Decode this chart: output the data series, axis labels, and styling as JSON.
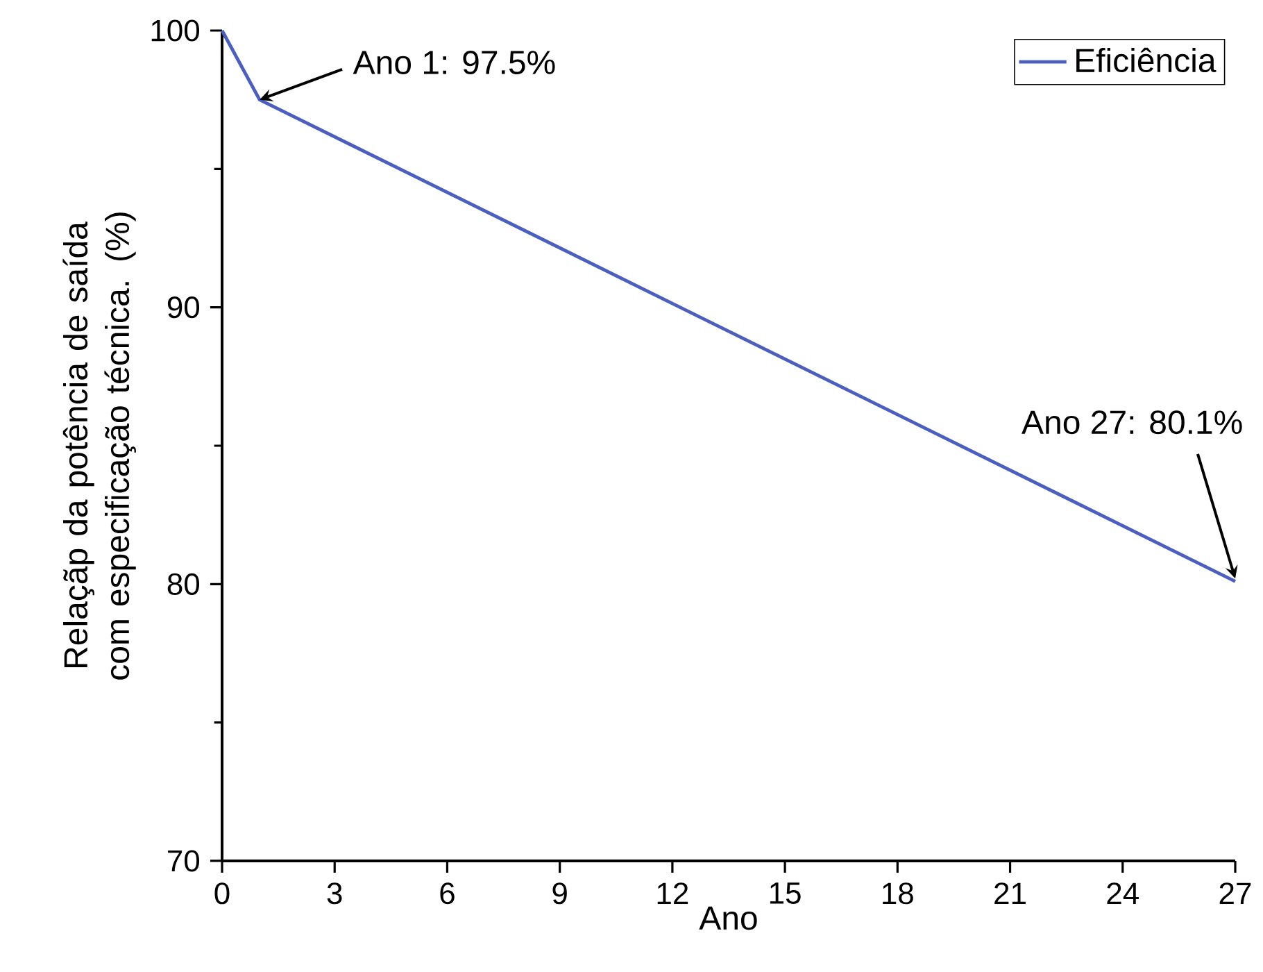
{
  "chart_data": {
    "type": "line",
    "xlabel": "Ano",
    "ylabel": "Relaçãp da potência de saída com especificação técnica. (%)",
    "x": [
      0,
      1,
      27
    ],
    "series": [
      {
        "name": "Eficiência",
        "color": "#4a5fc1",
        "values": [
          100,
          97.5,
          80.1
        ]
      }
    ],
    "xlim": [
      0,
      27
    ],
    "xticks": [
      0,
      3,
      6,
      9,
      12,
      15,
      18,
      21,
      24,
      27
    ],
    "ylim": [
      70,
      100
    ],
    "yticks": [
      70,
      80,
      90,
      100
    ],
    "legend": "top right",
    "marker": "none",
    "line_style": "solid",
    "grid": false,
    "annotations": [
      {
        "text": "Ano 1: 97.5%",
        "x": 1,
        "y": 97.5
      },
      {
        "text": "Ano 27: 80.1%",
        "x": 27,
        "y": 80.1
      }
    ]
  }
}
